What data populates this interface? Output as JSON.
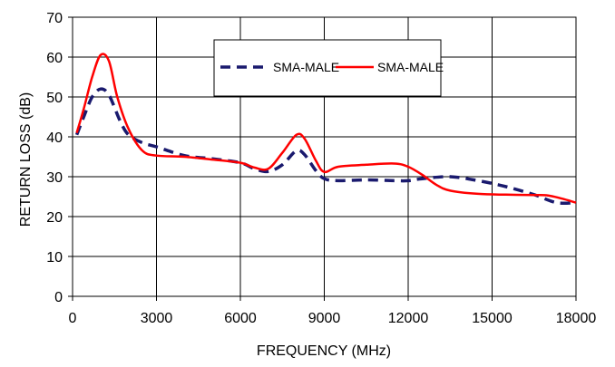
{
  "chart_data": {
    "type": "line",
    "title": "",
    "xlabel": "FREQUENCY (MHz)",
    "ylabel": "RETURN LOSS (dB)",
    "xlim": [
      0,
      18000
    ],
    "ylim": [
      0,
      70
    ],
    "xticks": [
      0,
      3000,
      6000,
      9000,
      12000,
      15000,
      18000
    ],
    "yticks": [
      0,
      10,
      20,
      30,
      40,
      50,
      60,
      70
    ],
    "grid": true,
    "legend_position": "top-center",
    "series": [
      {
        "name": "SMA-MALE",
        "color": "#1a1a6e",
        "style": "dashed",
        "points": [
          [
            150,
            40.5
          ],
          [
            400,
            45
          ],
          [
            700,
            50
          ],
          [
            1000,
            52
          ],
          [
            1300,
            50.5
          ],
          [
            1700,
            44
          ],
          [
            2000,
            40.5
          ],
          [
            2500,
            38.5
          ],
          [
            3000,
            37.5
          ],
          [
            4000,
            35.3
          ],
          [
            5000,
            34.5
          ],
          [
            6000,
            33.5
          ],
          [
            6500,
            32
          ],
          [
            7000,
            31.3
          ],
          [
            7500,
            33
          ],
          [
            8000,
            36.5
          ],
          [
            8300,
            35.5
          ],
          [
            8700,
            31.5
          ],
          [
            9000,
            29.5
          ],
          [
            9500,
            29
          ],
          [
            10500,
            29.2
          ],
          [
            11500,
            29
          ],
          [
            12000,
            29
          ],
          [
            12500,
            29.5
          ],
          [
            13500,
            30
          ],
          [
            14500,
            29
          ],
          [
            15500,
            27.5
          ],
          [
            16500,
            25.5
          ],
          [
            17300,
            23.5
          ],
          [
            18000,
            23.5
          ]
        ]
      },
      {
        "name": "SMA-MALE",
        "color": "#ff0000",
        "style": "solid",
        "points": [
          [
            150,
            41
          ],
          [
            400,
            47
          ],
          [
            700,
            55
          ],
          [
            1000,
            60.5
          ],
          [
            1300,
            59
          ],
          [
            1600,
            50
          ],
          [
            2000,
            42
          ],
          [
            2500,
            36.5
          ],
          [
            3000,
            35.3
          ],
          [
            4000,
            35
          ],
          [
            5000,
            34.3
          ],
          [
            6000,
            33.5
          ],
          [
            6500,
            32.3
          ],
          [
            7000,
            32
          ],
          [
            7500,
            36
          ],
          [
            8000,
            40.5
          ],
          [
            8300,
            39.5
          ],
          [
            8700,
            34
          ],
          [
            9000,
            31.2
          ],
          [
            9500,
            32.5
          ],
          [
            10500,
            33
          ],
          [
            11500,
            33.3
          ],
          [
            12000,
            32.5
          ],
          [
            12500,
            30.5
          ],
          [
            13000,
            28
          ],
          [
            13500,
            26.5
          ],
          [
            14500,
            25.7
          ],
          [
            15500,
            25.5
          ],
          [
            16500,
            25.4
          ],
          [
            17000,
            25.3
          ],
          [
            17500,
            24.5
          ],
          [
            18000,
            23.5
          ]
        ]
      }
    ]
  }
}
